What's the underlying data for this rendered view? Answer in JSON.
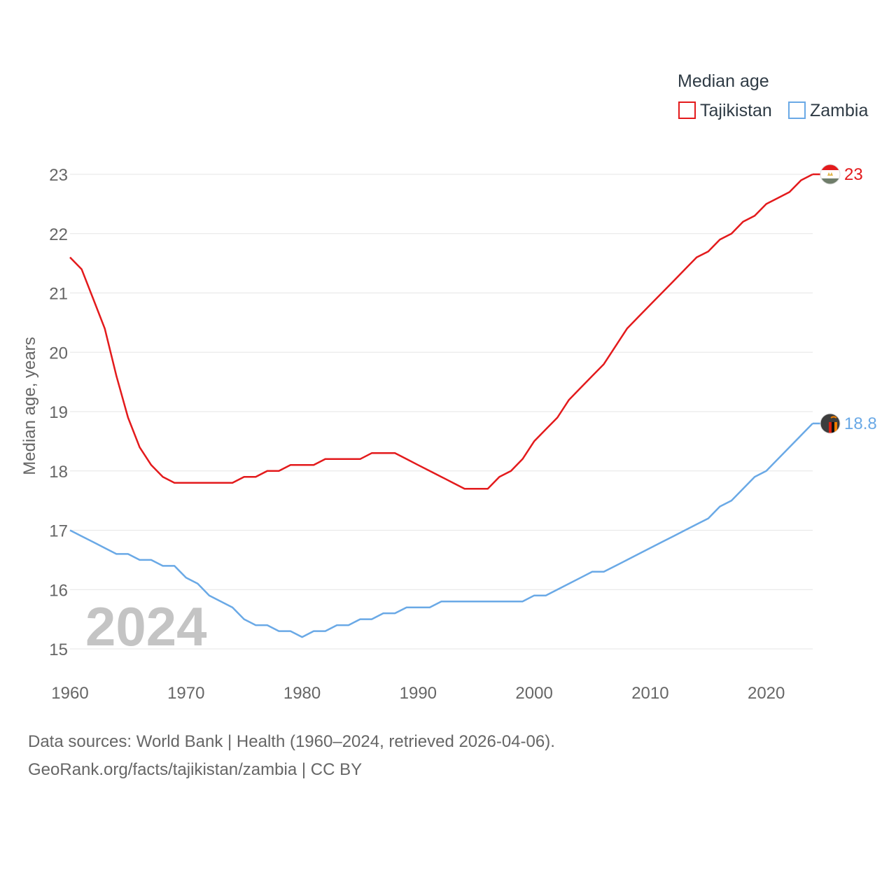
{
  "chart_data": {
    "type": "line",
    "legend_title": "Median age",
    "ylabel": "Median age, years",
    "xlim": [
      1960,
      2024
    ],
    "ylim": [
      15,
      23
    ],
    "x_ticks": [
      1960,
      1970,
      1980,
      1990,
      2000,
      2010,
      2020
    ],
    "y_ticks": [
      15,
      16,
      17,
      18,
      19,
      20,
      21,
      22,
      23
    ],
    "current_year_label": "2024",
    "x": [
      1960,
      1961,
      1962,
      1963,
      1964,
      1965,
      1966,
      1967,
      1968,
      1969,
      1970,
      1971,
      1972,
      1973,
      1974,
      1975,
      1976,
      1977,
      1978,
      1979,
      1980,
      1981,
      1982,
      1983,
      1984,
      1985,
      1986,
      1987,
      1988,
      1989,
      1990,
      1991,
      1992,
      1993,
      1994,
      1995,
      1996,
      1997,
      1998,
      1999,
      2000,
      2001,
      2002,
      2003,
      2004,
      2005,
      2006,
      2007,
      2008,
      2009,
      2010,
      2011,
      2012,
      2013,
      2014,
      2015,
      2016,
      2017,
      2018,
      2019,
      2020,
      2021,
      2022,
      2023,
      2024
    ],
    "series": [
      {
        "name": "Tajikistan",
        "color": "#e31a1c",
        "end_label": "23",
        "values": [
          21.6,
          21.4,
          20.9,
          20.4,
          19.6,
          18.9,
          18.4,
          18.1,
          17.9,
          17.8,
          17.8,
          17.8,
          17.8,
          17.8,
          17.8,
          17.9,
          17.9,
          18.0,
          18.0,
          18.1,
          18.1,
          18.1,
          18.2,
          18.2,
          18.2,
          18.2,
          18.3,
          18.3,
          18.3,
          18.2,
          18.1,
          18.0,
          17.9,
          17.8,
          17.7,
          17.7,
          17.7,
          17.9,
          18.0,
          18.2,
          18.5,
          18.7,
          18.9,
          19.2,
          19.4,
          19.6,
          19.8,
          20.1,
          20.4,
          20.6,
          20.8,
          21.0,
          21.2,
          21.4,
          21.6,
          21.7,
          21.9,
          22.0,
          22.2,
          22.3,
          22.5,
          22.6,
          22.7,
          22.9,
          23.0
        ]
      },
      {
        "name": "Zambia",
        "color": "#6aa9e6",
        "end_label": "18.8",
        "values": [
          17.0,
          16.9,
          16.8,
          16.7,
          16.6,
          16.6,
          16.5,
          16.5,
          16.4,
          16.4,
          16.2,
          16.1,
          15.9,
          15.8,
          15.7,
          15.5,
          15.4,
          15.4,
          15.3,
          15.3,
          15.2,
          15.3,
          15.3,
          15.4,
          15.4,
          15.5,
          15.5,
          15.6,
          15.6,
          15.7,
          15.7,
          15.7,
          15.8,
          15.8,
          15.8,
          15.8,
          15.8,
          15.8,
          15.8,
          15.8,
          15.9,
          15.9,
          16.0,
          16.1,
          16.2,
          16.3,
          16.3,
          16.4,
          16.5,
          16.6,
          16.7,
          16.8,
          16.9,
          17.0,
          17.1,
          17.2,
          17.4,
          17.5,
          17.7,
          17.9,
          18.0,
          18.2,
          18.4,
          18.6,
          18.8
        ]
      }
    ]
  },
  "source": {
    "line1": "Data sources: World Bank | Health (1960–2024, retrieved 2026-04-06).",
    "line2": "GeoRank.org/facts/tajikistan/zambia | CC BY"
  }
}
